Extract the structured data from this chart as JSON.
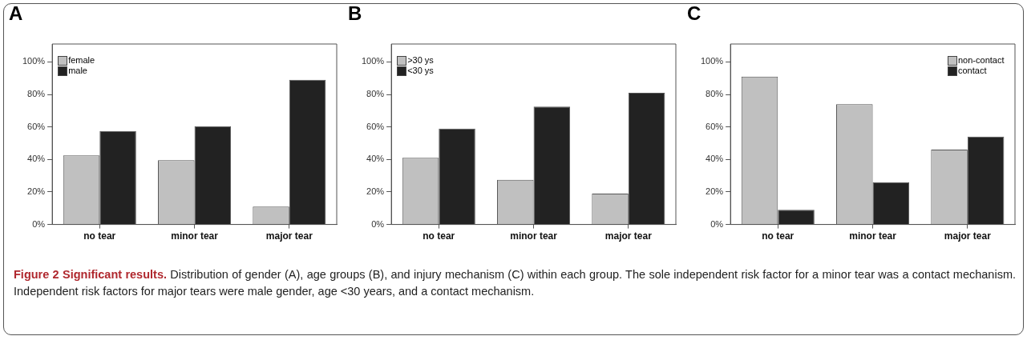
{
  "chart_data": [
    {
      "type": "bar",
      "title": "A",
      "categories": [
        "no tear",
        "minor tear",
        "major tear"
      ],
      "series": [
        {
          "name": "female",
          "color": "#c0c0c0",
          "values": [
            42.5,
            39.5,
            11
          ]
        },
        {
          "name": "male",
          "color": "#222222",
          "values": [
            57.5,
            60.5,
            89
          ]
        }
      ],
      "ylim": [
        0,
        111
      ],
      "yticks": [
        {
          "value": 0,
          "label": "0%"
        },
        {
          "value": 20,
          "label": "20%"
        },
        {
          "value": 40,
          "label": "40%"
        },
        {
          "value": 60,
          "label": "60%"
        },
        {
          "value": 80,
          "label": "80%"
        },
        {
          "value": 100,
          "label": "100%"
        }
      ],
      "legend": "top left",
      "annotations": [
        "Figure 2 Significant results.",
        "Distribution of gender (A), age groups (B), and injury mechanism (C) within each group. The sole independent risk factor for a minor tear was a contact mechanism. Independent risk factors for major tears were male gender, age <30 years, and a contact mechanism."
      ]
    },
    {
      "type": "bar",
      "title": "B",
      "categories": [
        "no tear",
        "minor tear",
        "major tear"
      ],
      "series": [
        {
          "name": ">30 ys",
          "color": "#c0c0c0",
          "values": [
            41,
            27.5,
            19
          ]
        },
        {
          "name": "<30 ys",
          "color": "#222222",
          "values": [
            59,
            72.5,
            81
          ]
        }
      ],
      "ylim": [
        0,
        111
      ],
      "yticks": [
        {
          "value": 0,
          "label": "0%"
        },
        {
          "value": 20,
          "label": "20%"
        },
        {
          "value": 40,
          "label": "40%"
        },
        {
          "value": 60,
          "label": "60%"
        },
        {
          "value": 80,
          "label": "80%"
        },
        {
          "value": 100,
          "label": "100%"
        }
      ],
      "legend": "top left"
    },
    {
      "type": "bar",
      "title": "C",
      "categories": [
        "no tear",
        "minor tear",
        "major tear"
      ],
      "series": [
        {
          "name": "non-contact",
          "color": "#c0c0c0",
          "values": [
            91,
            74,
            46
          ]
        },
        {
          "name": "contact",
          "color": "#222222",
          "values": [
            9,
            26,
            54
          ]
        }
      ],
      "ylim": [
        0,
        111
      ],
      "yticks": [
        {
          "value": 0,
          "label": "0%"
        },
        {
          "value": 20,
          "label": "20%"
        },
        {
          "value": 40,
          "label": "40%"
        },
        {
          "value": 60,
          "label": "60%"
        },
        {
          "value": 80,
          "label": "80%"
        },
        {
          "value": 100,
          "label": "100%"
        }
      ],
      "legend": "top right"
    }
  ]
}
